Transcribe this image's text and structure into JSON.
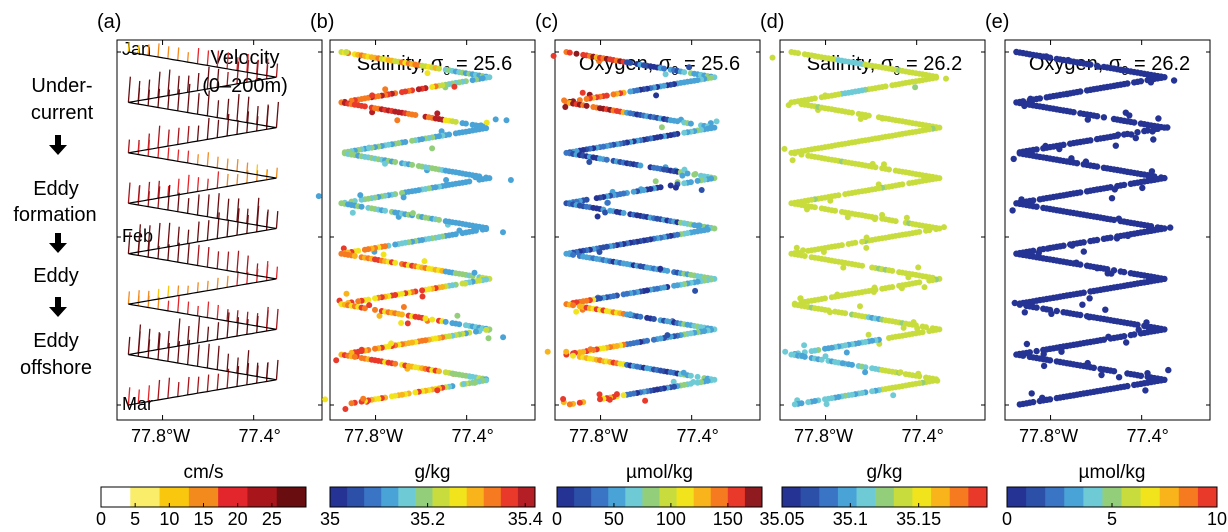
{
  "figure": {
    "flow": {
      "steps": [
        "Under-",
        "current",
        "Eddy",
        "formation",
        "Eddy",
        "Eddy",
        "offshore"
      ]
    },
    "colors": {
      "track": "#000000",
      "velocity": [
        "#ffffff",
        "#f9ed6a",
        "#f9c80e",
        "#f28a1e",
        "#e3262b",
        "#a8161c",
        "#6a0d10"
      ],
      "salinity": [
        "#253494",
        "#2c4fa8",
        "#3a74c4",
        "#4aa3d6",
        "#6ecbd6",
        "#93cf7a",
        "#c8dd3d",
        "#f2e41c",
        "#f9b31b",
        "#f57a20",
        "#e8392a",
        "#b31f24"
      ],
      "oxygen": [
        "#253494",
        "#2c4fa8",
        "#3a74c4",
        "#4aa3d6",
        "#6ecbd6",
        "#93cf7a",
        "#c8dd3d",
        "#f2e41c",
        "#f9b31b",
        "#f57a20",
        "#e8392a",
        "#8f1a1f"
      ],
      "sal26": [
        "#253494",
        "#2c4fa8",
        "#3a74c4",
        "#4aa3d6",
        "#6ecbd6",
        "#93cf7a",
        "#c8dd3d",
        "#f2e41c",
        "#f9b31b",
        "#f57a20",
        "#e8392a"
      ],
      "oxy26": [
        "#253494",
        "#2c4fa8",
        "#3a74c4",
        "#4aa3d6",
        "#6ecbd6",
        "#93cf7a",
        "#c8dd3d",
        "#f2e41c",
        "#f9b31b",
        "#f57a20",
        "#e8392a"
      ]
    }
  },
  "chart_data": [
    {
      "id": "a",
      "type": "scatter",
      "panel_label": "(a)",
      "title": "Velocity",
      "title2": "(0–200m)",
      "time_labels": [
        "Jan",
        "Feb",
        "Mar"
      ],
      "xticks": [
        -77.8,
        -77.4
      ],
      "xtick_labels": [
        "77.8°W",
        "77.4°"
      ],
      "xlim": [
        -78.0,
        -77.1
      ],
      "track_lon_range": [
        -77.95,
        -77.3
      ],
      "turns": 14,
      "colorbar": {
        "label": "cm/s",
        "range": [
          0,
          30
        ],
        "ticks": [
          0,
          5,
          10,
          15,
          20,
          25
        ],
        "tick_labels": [
          "0",
          "5",
          "10",
          "15",
          "20",
          "25"
        ]
      }
    },
    {
      "id": "b",
      "type": "scatter",
      "panel_label": "(b)",
      "title": "Salinity, σ",
      "title_sub": "0",
      "title_end": " = 25.6",
      "xticks": [
        -77.8,
        -77.4
      ],
      "xtick_labels": [
        "77.8°W",
        "77.4°"
      ],
      "xlim": [
        -78.0,
        -77.1
      ],
      "colorbar": {
        "label": "g/kg",
        "range": [
          35,
          35.42
        ],
        "ticks": [
          35,
          35.2,
          35.4
        ],
        "tick_labels": [
          "35",
          "35.2",
          "35.4"
        ]
      }
    },
    {
      "id": "c",
      "type": "scatter",
      "panel_label": "(c)",
      "title": "Oxygen, σ",
      "title_sub": "0",
      "title_end": " = 25.6",
      "xticks": [
        -77.8,
        -77.4
      ],
      "xtick_labels": [
        "77.8°W",
        "77.4°"
      ],
      "xlim": [
        -78.0,
        -77.1
      ],
      "colorbar": {
        "label": "µmol/kg",
        "range": [
          0,
          180
        ],
        "ticks": [
          0,
          50,
          100,
          150
        ],
        "tick_labels": [
          "0",
          "50",
          "100",
          "150"
        ]
      }
    },
    {
      "id": "d",
      "type": "scatter",
      "panel_label": "(d)",
      "title": "Salinity, σ",
      "title_sub": "0",
      "title_end": " = 26.2",
      "xticks": [
        -77.8,
        -77.4
      ],
      "xtick_labels": [
        "77.8°W",
        "77.4°"
      ],
      "xlim": [
        -78.0,
        -77.1
      ],
      "colorbar": {
        "label": "g/kg",
        "range": [
          35.05,
          35.2
        ],
        "ticks": [
          35.05,
          35.1,
          35.15
        ],
        "tick_labels": [
          "35.05",
          "35.1",
          "35.15"
        ]
      }
    },
    {
      "id": "e",
      "type": "scatter",
      "panel_label": "(e)",
      "title": "Oxygen, σ",
      "title_sub": "0",
      "title_end": " = 26.2",
      "xticks": [
        -77.8,
        -77.4
      ],
      "xtick_labels": [
        "77.8°W",
        "77.4°"
      ],
      "xlim": [
        -78.0,
        -77.1
      ],
      "colorbar": {
        "label": "µmol/kg",
        "range": [
          0,
          10
        ],
        "ticks": [
          0,
          5,
          10
        ],
        "tick_labels": [
          "0",
          "5",
          "10"
        ]
      }
    }
  ]
}
